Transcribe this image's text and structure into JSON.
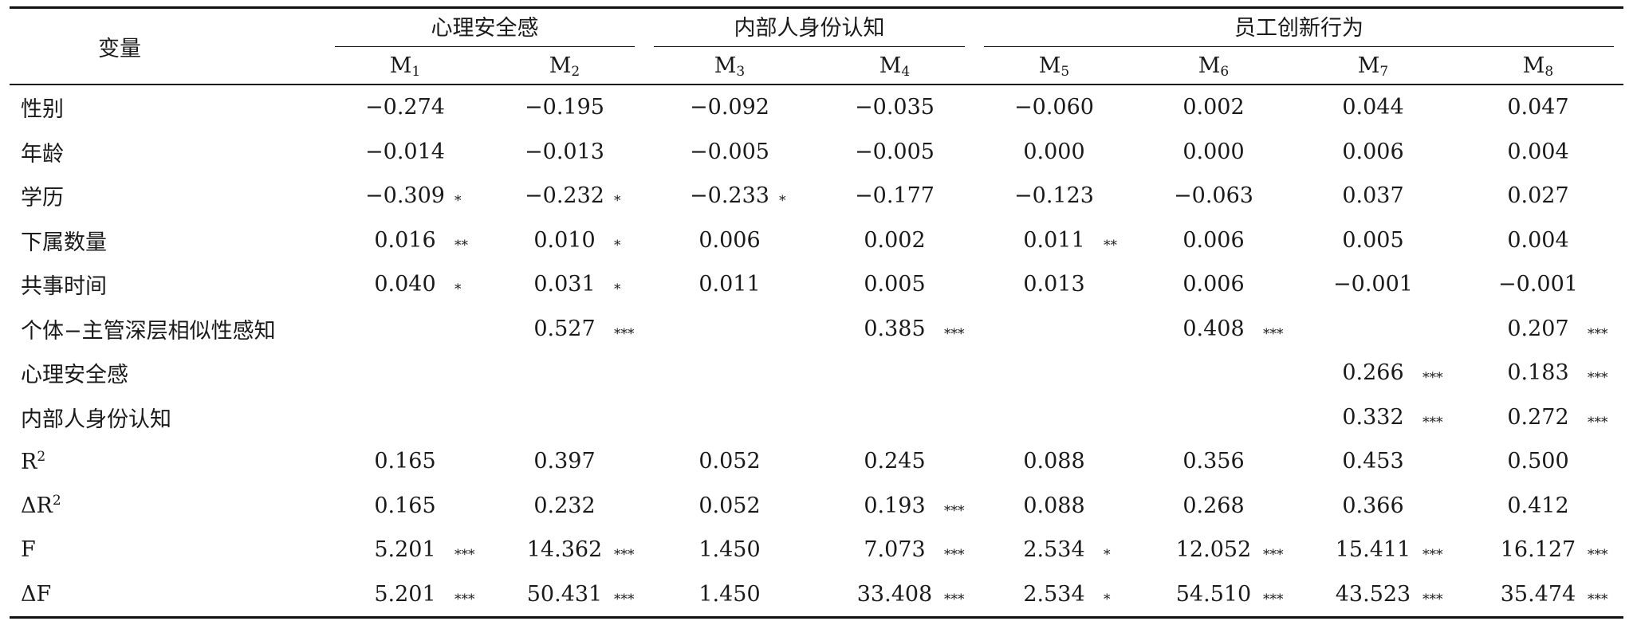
{
  "table": {
    "variable_header": "变量",
    "groups": [
      {
        "label": "心理安全感",
        "span": 2
      },
      {
        "label": "内部人身份认知",
        "span": 2
      },
      {
        "label": "员工创新行为",
        "span": 4
      }
    ],
    "models": [
      "M1",
      "M2",
      "M3",
      "M4",
      "M5",
      "M6",
      "M7",
      "M8"
    ],
    "rows": [
      {
        "label": "性别",
        "cells": [
          [
            "−0.274",
            ""
          ],
          [
            "−0.195",
            ""
          ],
          [
            "−0.092",
            ""
          ],
          [
            "−0.035",
            ""
          ],
          [
            "−0.060",
            ""
          ],
          [
            "0.002",
            ""
          ],
          [
            "0.044",
            ""
          ],
          [
            "0.047",
            ""
          ]
        ]
      },
      {
        "label": "年龄",
        "cells": [
          [
            "−0.014",
            ""
          ],
          [
            "−0.013",
            ""
          ],
          [
            "−0.005",
            ""
          ],
          [
            "−0.005",
            ""
          ],
          [
            "0.000",
            ""
          ],
          [
            "0.000",
            ""
          ],
          [
            "0.006",
            ""
          ],
          [
            "0.004",
            ""
          ]
        ]
      },
      {
        "label": "学历",
        "cells": [
          [
            "−0.309",
            "*"
          ],
          [
            "−0.232",
            "*"
          ],
          [
            "−0.233",
            "*"
          ],
          [
            "−0.177",
            ""
          ],
          [
            "−0.123",
            ""
          ],
          [
            "−0.063",
            ""
          ],
          [
            "0.037",
            ""
          ],
          [
            "0.027",
            ""
          ]
        ]
      },
      {
        "label": "下属数量",
        "cells": [
          [
            "0.016",
            "**"
          ],
          [
            "0.010",
            "*"
          ],
          [
            "0.006",
            ""
          ],
          [
            "0.002",
            ""
          ],
          [
            "0.011",
            "**"
          ],
          [
            "0.006",
            ""
          ],
          [
            "0.005",
            ""
          ],
          [
            "0.004",
            ""
          ]
        ]
      },
      {
        "label": "共事时间",
        "cells": [
          [
            "0.040",
            "*"
          ],
          [
            "0.031",
            "*"
          ],
          [
            "0.011",
            ""
          ],
          [
            "0.005",
            ""
          ],
          [
            "0.013",
            ""
          ],
          [
            "0.006",
            ""
          ],
          [
            "−0.001",
            ""
          ],
          [
            "−0.001",
            ""
          ]
        ]
      },
      {
        "label": "个体−主管深层相似性感知",
        "cells": [
          [
            "",
            ""
          ],
          [
            "0.527",
            "***"
          ],
          [
            "",
            ""
          ],
          [
            "0.385",
            "***"
          ],
          [
            "",
            ""
          ],
          [
            "0.408",
            "***"
          ],
          [
            "",
            ""
          ],
          [
            "0.207",
            "***"
          ]
        ]
      },
      {
        "label": "心理安全感",
        "cells": [
          [
            "",
            ""
          ],
          [
            "",
            ""
          ],
          [
            "",
            ""
          ],
          [
            "",
            ""
          ],
          [
            "",
            ""
          ],
          [
            "",
            ""
          ],
          [
            "0.266",
            "***"
          ],
          [
            "0.183",
            "***"
          ]
        ]
      },
      {
        "label": "内部人身份认知",
        "cells": [
          [
            "",
            ""
          ],
          [
            "",
            ""
          ],
          [
            "",
            ""
          ],
          [
            "",
            ""
          ],
          [
            "",
            ""
          ],
          [
            "",
            ""
          ],
          [
            "0.332",
            "***"
          ],
          [
            "0.272",
            "***"
          ]
        ]
      },
      {
        "label": "R2",
        "cells": [
          [
            "0.165",
            ""
          ],
          [
            "0.397",
            ""
          ],
          [
            "0.052",
            ""
          ],
          [
            "0.245",
            ""
          ],
          [
            "0.088",
            ""
          ],
          [
            "0.356",
            ""
          ],
          [
            "0.453",
            ""
          ],
          [
            "0.500",
            ""
          ]
        ]
      },
      {
        "label": "ΔR2",
        "cells": [
          [
            "0.165",
            ""
          ],
          [
            "0.232",
            ""
          ],
          [
            "0.052",
            ""
          ],
          [
            "0.193",
            "***"
          ],
          [
            "0.088",
            ""
          ],
          [
            "0.268",
            ""
          ],
          [
            "0.366",
            ""
          ],
          [
            "0.412",
            ""
          ]
        ]
      },
      {
        "label": "F",
        "cells": [
          [
            "5.201",
            "***"
          ],
          [
            "14.362",
            "***"
          ],
          [
            "1.450",
            ""
          ],
          [
            "7.073",
            "***"
          ],
          [
            "2.534",
            "*"
          ],
          [
            "12.052",
            "***"
          ],
          [
            "15.411",
            "***"
          ],
          [
            "16.127",
            "***"
          ]
        ]
      },
      {
        "label": "ΔF",
        "cells": [
          [
            "5.201",
            "***"
          ],
          [
            "50.431",
            "***"
          ],
          [
            "1.450",
            ""
          ],
          [
            "33.408",
            "***"
          ],
          [
            "2.534",
            "*"
          ],
          [
            "54.510",
            "***"
          ],
          [
            "43.523",
            "***"
          ],
          [
            "35.474",
            "***"
          ]
        ]
      }
    ]
  }
}
